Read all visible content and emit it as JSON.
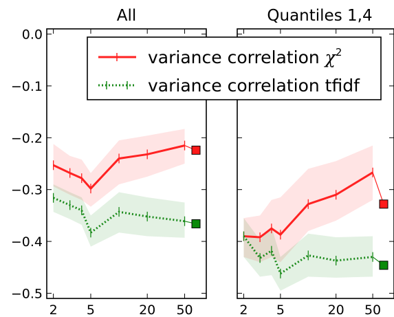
{
  "chart_data": [
    {
      "type": "line",
      "title": "All",
      "xlabel": "",
      "ylabel": "",
      "x_scale": "log",
      "x_ticks": [
        2,
        5,
        20,
        50
      ],
      "x_tick_labels": [
        "2",
        "5",
        "20",
        "50"
      ],
      "xlim": [
        1.7,
        85
      ],
      "ylim": [
        -0.51,
        0.01
      ],
      "y_ticks": [
        0.0,
        -0.1,
        -0.2,
        -0.3,
        -0.4,
        -0.5
      ],
      "y_tick_labels": [
        "0.0",
        "−0.1",
        "−0.2",
        "−0.3",
        "−0.4",
        "−0.5"
      ],
      "grid": false,
      "series": [
        {
          "name": "variance correlation χ²",
          "color": "#ff2222",
          "style": "solid",
          "x": [
            2,
            3,
            4,
            5,
            10,
            20,
            50
          ],
          "y": [
            -0.253,
            -0.268,
            -0.278,
            -0.298,
            -0.24,
            -0.232,
            -0.215
          ],
          "band_low": [
            -0.294,
            -0.31,
            -0.32,
            -0.333,
            -0.29,
            -0.275,
            -0.25
          ],
          "band_high": [
            -0.212,
            -0.235,
            -0.242,
            -0.268,
            -0.205,
            -0.196,
            -0.183
          ],
          "reference_marker": -0.224
        },
        {
          "name": "variance correlation tfidf",
          "color": "#1a8a1a",
          "style": "dotted",
          "x": [
            2,
            3,
            4,
            5,
            10,
            20,
            50
          ],
          "y": [
            -0.316,
            -0.33,
            -0.34,
            -0.383,
            -0.343,
            -0.352,
            -0.361
          ],
          "band_low": [
            -0.343,
            -0.357,
            -0.368,
            -0.41,
            -0.383,
            -0.39,
            -0.393
          ],
          "band_high": [
            -0.29,
            -0.305,
            -0.315,
            -0.35,
            -0.305,
            -0.315,
            -0.325
          ],
          "reference_marker": -0.366
        }
      ]
    },
    {
      "type": "line",
      "title": "Quantiles 1,4",
      "xlabel": "",
      "ylabel": "",
      "x_scale": "log",
      "x_ticks": [
        2,
        5,
        20,
        50
      ],
      "x_tick_labels": [
        "2",
        "5",
        "20",
        "50"
      ],
      "xlim": [
        1.7,
        85
      ],
      "ylim": [
        -0.51,
        0.01
      ],
      "grid": false,
      "series": [
        {
          "name": "variance correlation χ²",
          "color": "#ff2222",
          "style": "solid",
          "x": [
            2,
            3,
            4,
            5,
            10,
            20,
            50
          ],
          "y": [
            -0.39,
            -0.392,
            -0.375,
            -0.387,
            -0.328,
            -0.31,
            -0.267
          ],
          "band_low": [
            -0.43,
            -0.44,
            -0.43,
            -0.44,
            -0.38,
            -0.36,
            -0.32
          ],
          "band_high": [
            -0.355,
            -0.35,
            -0.32,
            -0.315,
            -0.26,
            -0.245,
            -0.215
          ],
          "reference_marker": -0.328
        },
        {
          "name": "variance correlation tfidf",
          "color": "#1a8a1a",
          "style": "dotted",
          "x": [
            2,
            3,
            4,
            5,
            10,
            20,
            50
          ],
          "y": [
            -0.39,
            -0.432,
            -0.418,
            -0.462,
            -0.427,
            -0.437,
            -0.43
          ],
          "band_low": [
            -0.43,
            -0.468,
            -0.465,
            -0.495,
            -0.468,
            -0.47,
            -0.468
          ],
          "band_high": [
            -0.355,
            -0.397,
            -0.372,
            -0.43,
            -0.385,
            -0.392,
            -0.39
          ],
          "reference_marker": -0.446
        }
      ]
    }
  ],
  "legend": {
    "placement": "top",
    "entries": [
      {
        "label": "variance correlation ",
        "math": "χ",
        "sup": "2",
        "color": "#ff2222",
        "style": "solid"
      },
      {
        "label": "variance correlation tfidf",
        "color": "#1a8a1a",
        "style": "dotted"
      }
    ]
  }
}
